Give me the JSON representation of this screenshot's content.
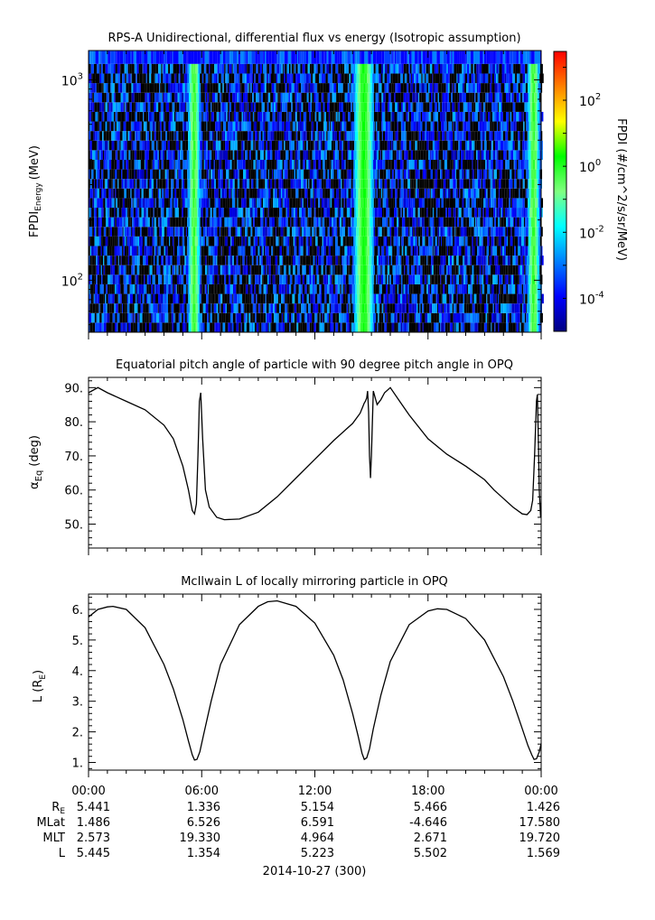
{
  "chart_data": [
    {
      "type": "heatmap",
      "title": "RPS-A Unidirectional, differential flux vs energy (Isotropic assumption)",
      "ylabel_main": "FPDI",
      "ylabel_sub": "Energy",
      "ylabel_unit": "(MeV)",
      "yscale": "log",
      "ylim": [
        55,
        1400
      ],
      "y_ticks": [
        {
          "value": 100,
          "base": "10",
          "exp": "2"
        },
        {
          "value": 1000,
          "base": "10",
          "exp": "3"
        }
      ],
      "xlim": [
        0,
        24
      ],
      "colorbar": {
        "label": "FPDI (#/cm^2/s/sr/MeV)",
        "scale": "log",
        "range": [
          1e-05,
          3000.0
        ],
        "ticks": [
          {
            "value": 0.0001,
            "base": "10",
            "exp": "-4"
          },
          {
            "value": 0.01,
            "base": "10",
            "exp": "-2"
          },
          {
            "value": 1,
            "base": "10",
            "exp": "0"
          },
          {
            "value": 100,
            "base": "10",
            "exp": "2"
          }
        ],
        "colors": [
          "#000080",
          "#0000ff",
          "#0080ff",
          "#00ffff",
          "#80ff80",
          "#00ff00",
          "#ffff00",
          "#ff8000",
          "#ff0000"
        ]
      },
      "belt_crossings_hours": [
        5.6,
        14.6,
        23.6
      ],
      "belt_peak_flux": [
        1.0,
        2.0,
        1.0
      ]
    },
    {
      "type": "line",
      "title": "Equatorial pitch angle of particle with 90 degree pitch angle in OPQ",
      "ylabel_main": "α",
      "ylabel_sub": "Eq",
      "ylabel_unit": "(deg)",
      "ylim": [
        43,
        93
      ],
      "y_ticks": [
        "50.",
        "60.",
        "70.",
        "80.",
        "90."
      ],
      "y_tick_values": [
        50,
        60,
        70,
        80,
        90
      ],
      "xlim": [
        0,
        24
      ],
      "x": [
        0,
        0.5,
        1,
        2,
        3,
        4,
        4.5,
        5,
        5.3,
        5.5,
        5.62,
        5.72,
        5.8,
        5.88,
        5.95,
        6.05,
        6.2,
        6.4,
        6.8,
        7.2,
        8,
        9,
        10,
        11,
        12,
        13,
        14,
        14.4,
        14.55,
        14.62,
        14.68,
        14.75,
        14.8,
        14.85,
        14.9,
        14.95,
        15,
        15.1,
        15.3,
        15.5,
        15.7,
        16,
        16.5,
        17,
        18,
        19,
        20,
        21,
        21.5,
        22,
        22.5,
        23,
        23.25,
        23.45,
        23.55,
        23.65,
        23.75,
        23.8,
        23.85,
        23.9,
        23.97
      ],
      "y": [
        88.5,
        90.0,
        88.5,
        86.0,
        83.5,
        79.0,
        75.0,
        67.0,
        60.0,
        54.0,
        53.0,
        56.0,
        70.0,
        86.0,
        88.5,
        75.0,
        60.0,
        55.0,
        52.0,
        51.3,
        51.5,
        53.5,
        58.0,
        63.5,
        69.0,
        74.5,
        79.5,
        82.5,
        84.5,
        85.5,
        86.0,
        87.0,
        89.0,
        83.0,
        70.0,
        63.5,
        70.0,
        89.0,
        85.0,
        86.5,
        88.5,
        90.0,
        86.0,
        82.0,
        75.0,
        70.5,
        67.0,
        63.0,
        60.0,
        57.5,
        55.0,
        53.0,
        52.8,
        54.0,
        57.0,
        70.0,
        86.0,
        88.0,
        75.0,
        60.0,
        52.0
      ]
    },
    {
      "type": "line",
      "title": "McIlwain L of locally mirroring particle in OPQ",
      "ylabel_main": "L (R",
      "ylabel_sub": "E",
      "ylabel_unit": ")",
      "ylim": [
        0.75,
        6.5
      ],
      "y_ticks": [
        "1.",
        "2.",
        "3.",
        "4.",
        "5.",
        "6."
      ],
      "y_tick_values": [
        1,
        2,
        3,
        4,
        5,
        6
      ],
      "xlim": [
        0,
        24
      ],
      "x": [
        0,
        0.5,
        1,
        1.3,
        2,
        3,
        4,
        4.5,
        5,
        5.3,
        5.5,
        5.62,
        5.75,
        5.9,
        6.1,
        6.5,
        7,
        8,
        9,
        9.5,
        10,
        11,
        12,
        13,
        13.5,
        14,
        14.3,
        14.5,
        14.62,
        14.75,
        14.9,
        15.1,
        15.5,
        16,
        17,
        18,
        18.5,
        19,
        20,
        21,
        22,
        22.5,
        23,
        23.3,
        23.5,
        23.62,
        23.75,
        23.9,
        24
      ],
      "y": [
        5.75,
        6.0,
        6.08,
        6.1,
        6.0,
        5.4,
        4.2,
        3.4,
        2.4,
        1.7,
        1.25,
        1.08,
        1.1,
        1.35,
        1.9,
        3.0,
        4.2,
        5.5,
        6.1,
        6.25,
        6.28,
        6.1,
        5.55,
        4.5,
        3.7,
        2.6,
        1.85,
        1.3,
        1.1,
        1.15,
        1.45,
        2.1,
        3.2,
        4.3,
        5.5,
        5.95,
        6.02,
        6.0,
        5.7,
        5.0,
        3.8,
        3.0,
        2.1,
        1.55,
        1.25,
        1.1,
        1.12,
        1.35,
        1.62
      ]
    }
  ],
  "x_axis": {
    "tick_hours": [
      0,
      6,
      12,
      18,
      24
    ],
    "tick_labels": [
      "00:00",
      "06:00",
      "12:00",
      "18:00",
      "00:00"
    ],
    "minor_every_hours": 1,
    "date_label": "2014-10-27 (300)"
  },
  "ephemeris": {
    "rows": [
      {
        "label_main": "R",
        "label_sub": "E",
        "values": [
          "5.441",
          "1.336",
          "5.154",
          "5.466",
          "1.426"
        ]
      },
      {
        "label_main": "MLat",
        "label_sub": "",
        "values": [
          "1.486",
          "6.526",
          "6.591",
          "-4.646",
          "17.580"
        ]
      },
      {
        "label_main": "MLT",
        "label_sub": "",
        "values": [
          "2.573",
          "19.330",
          "4.964",
          "2.671",
          "19.720"
        ]
      },
      {
        "label_main": "L",
        "label_sub": "",
        "values": [
          "5.445",
          "1.354",
          "5.223",
          "5.502",
          "1.569"
        ]
      }
    ]
  }
}
